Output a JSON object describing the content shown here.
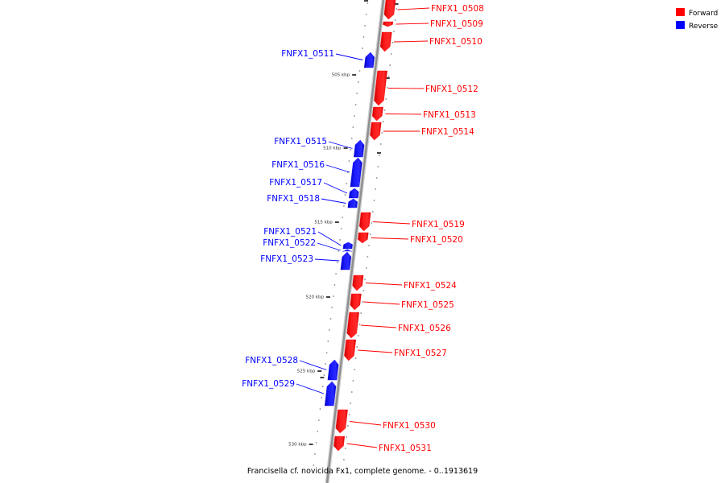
{
  "caption": "Francisella cf. novicida Fx1, complete genome. - 0..1913619",
  "legend": [
    {
      "label": "Forward",
      "color": "#ff0000"
    },
    {
      "label": "Reverse",
      "color": "#0000ff"
    }
  ],
  "colors": {
    "forward": "#ff0000",
    "reverse": "#0000ff",
    "backbone": "#9a9a9a"
  },
  "tick_labels": [
    "505 kbp",
    "510 kbp",
    "515 kbp",
    "520 kbp",
    "525 kbp",
    "530 kbp"
  ],
  "genes": [
    {
      "name": "FNFX1_0508",
      "strand": "forward"
    },
    {
      "name": "FNFX1_0509",
      "strand": "forward"
    },
    {
      "name": "FNFX1_0510",
      "strand": "forward"
    },
    {
      "name": "FNFX1_0511",
      "strand": "reverse"
    },
    {
      "name": "FNFX1_0512",
      "strand": "forward"
    },
    {
      "name": "FNFX1_0513",
      "strand": "forward"
    },
    {
      "name": "FNFX1_0514",
      "strand": "forward"
    },
    {
      "name": "FNFX1_0515",
      "strand": "reverse"
    },
    {
      "name": "FNFX1_0516",
      "strand": "reverse"
    },
    {
      "name": "FNFX1_0517",
      "strand": "reverse"
    },
    {
      "name": "FNFX1_0518",
      "strand": "reverse"
    },
    {
      "name": "FNFX1_0519",
      "strand": "forward"
    },
    {
      "name": "FNFX1_0520",
      "strand": "forward"
    },
    {
      "name": "FNFX1_0521",
      "strand": "reverse"
    },
    {
      "name": "FNFX1_0522",
      "strand": "reverse"
    },
    {
      "name": "FNFX1_0523",
      "strand": "reverse"
    },
    {
      "name": "FNFX1_0524",
      "strand": "forward"
    },
    {
      "name": "FNFX1_0525",
      "strand": "forward"
    },
    {
      "name": "FNFX1_0526",
      "strand": "forward"
    },
    {
      "name": "FNFX1_0527",
      "strand": "forward"
    },
    {
      "name": "FNFX1_0528",
      "strand": "reverse"
    },
    {
      "name": "FNFX1_0529",
      "strand": "reverse"
    },
    {
      "name": "FNFX1_0530",
      "strand": "forward"
    },
    {
      "name": "FNFX1_0531",
      "strand": "forward"
    }
  ]
}
